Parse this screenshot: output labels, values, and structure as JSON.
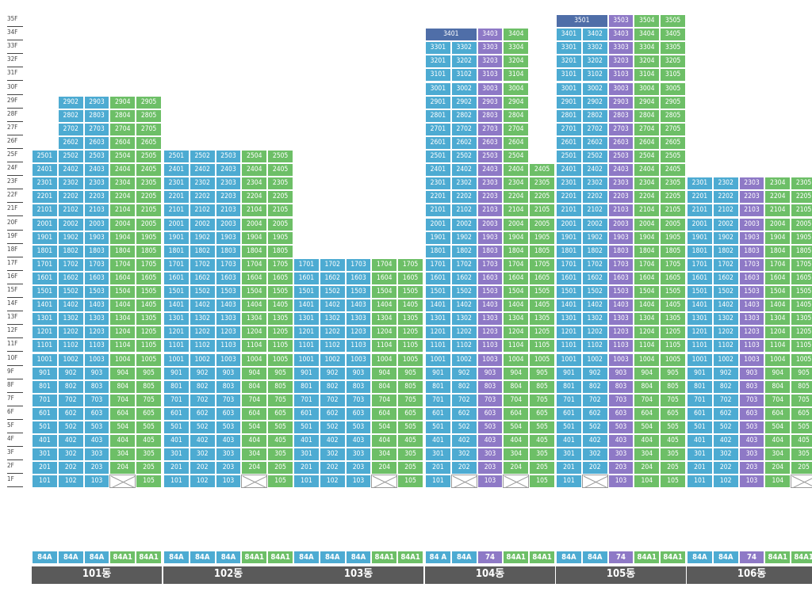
{
  "colors": {
    "blue": "#4dabd2",
    "green": "#6dbf67",
    "purple": "#8e79c6",
    "navy": "#4f6ea8",
    "empty": "#ffffff",
    "name_bar": "#5a5a5a"
  },
  "floors": [
    "35F",
    "34F",
    "33F",
    "32F",
    "31F",
    "30F",
    "29F",
    "28F",
    "27F",
    "26F",
    "25F",
    "24F",
    "23F",
    "22F",
    "21F",
    "20F",
    "19F",
    "18F",
    "17F",
    "16F",
    "15F",
    "14F",
    "13F",
    "12F",
    "11F",
    "10F",
    "9F",
    "8F",
    "7F",
    "6F",
    "5F",
    "4F",
    "3F",
    "2F",
    "1F"
  ],
  "buildings": [
    {
      "name": "101동",
      "types": [
        {
          "label": "84A",
          "color": "blue"
        },
        {
          "label": "84A",
          "color": "blue"
        },
        {
          "label": "84A",
          "color": "blue"
        },
        {
          "label": "84A1",
          "color": "green"
        },
        {
          "label": "84A1",
          "color": "green"
        }
      ],
      "columns": [
        {
          "color": "blue",
          "top": 25,
          "bottom": 1
        },
        {
          "color": "blue",
          "top": 29,
          "bottom": 1
        },
        {
          "color": "blue",
          "top": 29,
          "bottom": 1
        },
        {
          "color": "green",
          "top": 29,
          "bottom": 2,
          "empty_floors": [
            1
          ]
        },
        {
          "color": "green",
          "top": 29,
          "bottom": 1
        }
      ]
    },
    {
      "name": "102동",
      "types": [
        {
          "label": "84A",
          "color": "blue"
        },
        {
          "label": "84A",
          "color": "blue"
        },
        {
          "label": "84A",
          "color": "blue"
        },
        {
          "label": "84A1",
          "color": "green"
        },
        {
          "label": "84A1",
          "color": "green"
        }
      ],
      "columns": [
        {
          "color": "blue",
          "top": 25,
          "bottom": 1
        },
        {
          "color": "blue",
          "top": 25,
          "bottom": 1
        },
        {
          "color": "blue",
          "top": 25,
          "bottom": 1
        },
        {
          "color": "green",
          "top": 25,
          "bottom": 2,
          "empty_floors": [
            1
          ]
        },
        {
          "color": "green",
          "top": 25,
          "bottom": 1
        }
      ]
    },
    {
      "name": "103동",
      "types": [
        {
          "label": "84A",
          "color": "blue"
        },
        {
          "label": "84A",
          "color": "blue"
        },
        {
          "label": "84A",
          "color": "blue"
        },
        {
          "label": "84A1",
          "color": "green"
        },
        {
          "label": "84A1",
          "color": "green"
        }
      ],
      "columns": [
        {
          "color": "blue",
          "top": 17,
          "bottom": 1
        },
        {
          "color": "blue",
          "top": 17,
          "bottom": 1
        },
        {
          "color": "blue",
          "top": 17,
          "bottom": 1
        },
        {
          "color": "green",
          "top": 17,
          "bottom": 2,
          "empty_floors": [
            1
          ]
        },
        {
          "color": "green",
          "top": 17,
          "bottom": 1
        }
      ]
    },
    {
      "name": "104동",
      "types": [
        {
          "label": "84 A",
          "color": "blue"
        },
        {
          "label": "84A",
          "color": "blue"
        },
        {
          "label": "74",
          "color": "purple"
        },
        {
          "label": "84A1",
          "color": "green"
        },
        {
          "label": "84A1",
          "color": "green"
        }
      ],
      "columns": [
        {
          "color": "blue",
          "top": 33,
          "bottom": 1
        },
        {
          "color": "blue",
          "top": 33,
          "bottom": 2,
          "empty_floors": [
            1
          ]
        },
        {
          "color": "purple",
          "top": 33,
          "bottom": 1
        },
        {
          "color": "green",
          "top": 33,
          "bottom": 2,
          "empty_floors": [
            1
          ]
        },
        {
          "color": "green",
          "top": 24,
          "bottom": 1
        }
      ],
      "penthouses": [
        {
          "floor": 34,
          "label": "3401",
          "span": 2,
          "color": "navy"
        },
        {
          "floor": 34,
          "label": "3403",
          "span": 1,
          "color": "purple"
        },
        {
          "floor": 34,
          "label": "3404",
          "span": 1,
          "color": "green"
        }
      ]
    },
    {
      "name": "105동",
      "types": [
        {
          "label": "84A",
          "color": "blue"
        },
        {
          "label": "84A",
          "color": "blue"
        },
        {
          "label": "74",
          "color": "purple"
        },
        {
          "label": "84A1",
          "color": "green"
        },
        {
          "label": "84A1",
          "color": "green"
        }
      ],
      "columns": [
        {
          "color": "blue",
          "top": 34,
          "bottom": 1
        },
        {
          "color": "blue",
          "top": 34,
          "bottom": 2,
          "empty_floors": [
            1
          ]
        },
        {
          "color": "purple",
          "top": 34,
          "bottom": 1
        },
        {
          "color": "green",
          "top": 34,
          "bottom": 1
        },
        {
          "color": "green",
          "top": 34,
          "bottom": 1
        }
      ],
      "penthouses": [
        {
          "floor": 35,
          "label": "3501",
          "span": 2,
          "color": "navy"
        },
        {
          "floor": 35,
          "label": "3503",
          "span": 1,
          "color": "purple"
        },
        {
          "floor": 35,
          "label": "3504",
          "span": 1,
          "color": "green"
        },
        {
          "floor": 35,
          "label": "3505",
          "span": 1,
          "color": "green"
        }
      ]
    },
    {
      "name": "106동",
      "types": [
        {
          "label": "84A",
          "color": "blue"
        },
        {
          "label": "84A",
          "color": "blue"
        },
        {
          "label": "74",
          "color": "purple"
        },
        {
          "label": "84A1",
          "color": "green"
        },
        {
          "label": "84A1",
          "color": "green"
        }
      ],
      "columns": [
        {
          "color": "blue",
          "top": 23,
          "bottom": 1
        },
        {
          "color": "blue",
          "top": 23,
          "bottom": 1
        },
        {
          "color": "purple",
          "top": 23,
          "bottom": 1
        },
        {
          "color": "green",
          "top": 23,
          "bottom": 1
        },
        {
          "color": "green",
          "top": 23,
          "bottom": 2,
          "empty_floors": [
            1
          ]
        }
      ]
    }
  ]
}
